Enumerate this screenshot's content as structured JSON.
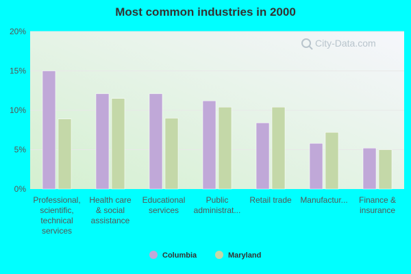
{
  "chart_data": {
    "type": "bar",
    "title": "Most common industries in 2000",
    "xlabel": "",
    "ylabel": "",
    "ylim": [
      0,
      20
    ],
    "yticks": [
      0,
      5,
      10,
      15,
      20
    ],
    "ytick_labels": [
      "0%",
      "5%",
      "10%",
      "15%",
      "20%"
    ],
    "categories": [
      "Professional, scientific, technical services",
      "Health care & social assistance",
      "Educational services",
      "Public administrat...",
      "Retail trade",
      "Manufactur...",
      "Finance & insurance"
    ],
    "category_label_lines": [
      [
        "Professional,",
        "scientific,",
        "technical",
        "services"
      ],
      [
        "Health care",
        "& social",
        "assistance"
      ],
      [
        "Educational",
        "services"
      ],
      [
        "Public",
        "administrat..."
      ],
      [
        "Retail trade"
      ],
      [
        "Manufactur..."
      ],
      [
        "Finance &",
        "insurance"
      ]
    ],
    "series": [
      {
        "name": "Columbia",
        "color": "#c0a8d8",
        "values": [
          15.0,
          12.1,
          12.1,
          11.2,
          8.4,
          5.8,
          5.2
        ]
      },
      {
        "name": "Maryland",
        "color": "#c4d8a8",
        "values": [
          8.9,
          11.5,
          9.0,
          10.4,
          10.4,
          7.2,
          5.0
        ]
      }
    ],
    "legend": {
      "position": "bottom"
    },
    "grid": true
  },
  "watermark": {
    "text": "City-Data.com"
  }
}
